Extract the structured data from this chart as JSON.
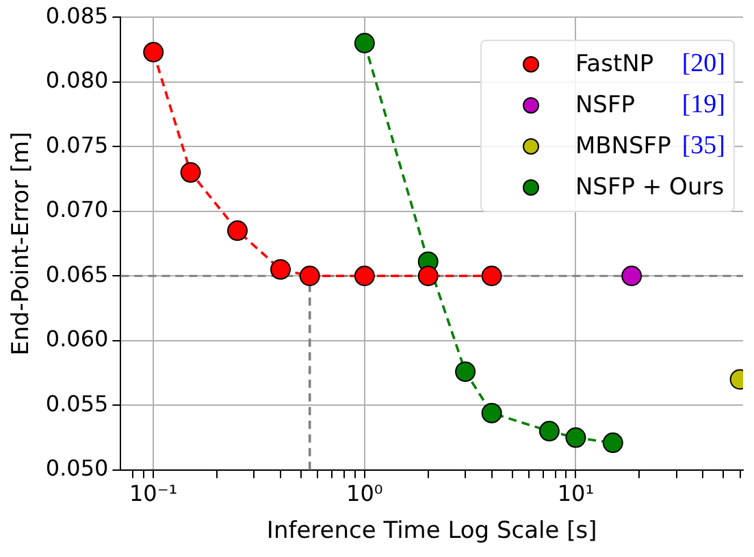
{
  "chart_data": {
    "type": "line",
    "xlabel": "Inference Time Log Scale [s]",
    "ylabel": "End-Point-Error [m]",
    "log": "x",
    "grid": true,
    "legend": "top right",
    "marker": "circle",
    "line_style": "dashed",
    "xlim": [
      0.07,
      62
    ],
    "ylim": [
      0.05,
      0.085
    ],
    "xticks": [
      {
        "value": 0.08,
        "label": null
      },
      {
        "value": 0.09,
        "label": null
      },
      {
        "value": 0.1,
        "label": "10⁻¹"
      },
      {
        "value": 0.2,
        "label": null
      },
      {
        "value": 0.3,
        "label": null
      },
      {
        "value": 0.4,
        "label": null
      },
      {
        "value": 0.5,
        "label": null
      },
      {
        "value": 0.6,
        "label": null
      },
      {
        "value": 0.7,
        "label": null
      },
      {
        "value": 0.8,
        "label": null
      },
      {
        "value": 0.9,
        "label": null
      },
      {
        "value": 1,
        "label": "10⁰"
      },
      {
        "value": 2,
        "label": null
      },
      {
        "value": 3,
        "label": null
      },
      {
        "value": 4,
        "label": null
      },
      {
        "value": 5,
        "label": null
      },
      {
        "value": 6,
        "label": null
      },
      {
        "value": 7,
        "label": null
      },
      {
        "value": 8,
        "label": null
      },
      {
        "value": 9,
        "label": null
      },
      {
        "value": 10,
        "label": "10¹"
      },
      {
        "value": 20,
        "label": null
      },
      {
        "value": 30,
        "label": null
      },
      {
        "value": 40,
        "label": null
      },
      {
        "value": 50,
        "label": null
      },
      {
        "value": 60,
        "label": null
      }
    ],
    "yticks": [
      {
        "value": 0.05,
        "label": "0.050"
      },
      {
        "value": 0.055,
        "label": "0.055"
      },
      {
        "value": 0.06,
        "label": "0.060"
      },
      {
        "value": 0.065,
        "label": "0.065"
      },
      {
        "value": 0.07,
        "label": "0.070"
      },
      {
        "value": 0.075,
        "label": "0.075"
      },
      {
        "value": 0.08,
        "label": "0.080"
      },
      {
        "value": 0.085,
        "label": "0.085"
      }
    ],
    "ref_lines": [
      {
        "axis": "y",
        "value": 0.065,
        "color": "#808080",
        "line_style": "dashed"
      }
    ],
    "series": [
      {
        "color": "#808080",
        "x": [
          0.55,
          0.55
        ],
        "values": [
          0.05,
          0.065
        ],
        "marker": "none"
      },
      {
        "name": "FastNP [20]",
        "color": "#ff0000",
        "x": [
          0.1,
          0.15,
          0.25,
          0.4,
          0.55,
          1,
          2,
          4
        ],
        "values": [
          0.0823,
          0.073,
          0.0685,
          0.0655,
          0.065,
          0.065,
          0.065,
          0.065
        ]
      },
      {
        "name": "NSFP [19]",
        "color": "#bf00bf",
        "x": [
          18.4
        ],
        "values": [
          0.065
        ]
      },
      {
        "name": "MBNSFP [35]",
        "color": "#bfbf00",
        "x": [
          60
        ],
        "values": [
          0.057
        ]
      },
      {
        "name": "NSFP + Ours",
        "color": "#008000",
        "x": [
          1,
          2,
          3,
          4,
          7.5,
          10,
          15
        ],
        "values": [
          0.083,
          0.0661,
          0.0576,
          0.0544,
          0.053,
          0.0525,
          0.0521
        ]
      }
    ]
  }
}
